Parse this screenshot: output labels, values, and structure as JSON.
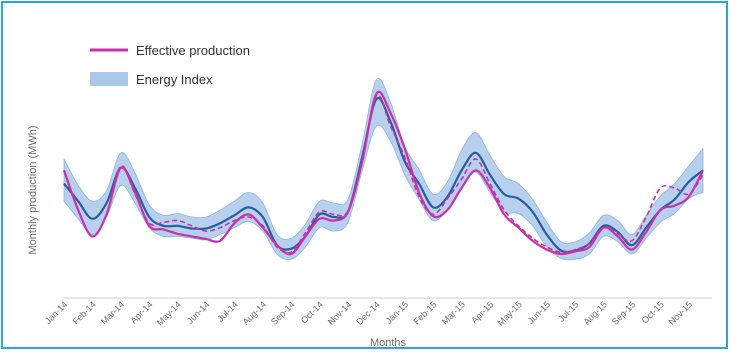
{
  "chart_data": {
    "type": "line",
    "xlabel": "Months",
    "ylabel": "Monthly production (MWh)",
    "categories": [
      "Jan-14",
      "Feb-14",
      "Mar-14",
      "Apr-14",
      "May-14",
      "Jun-14",
      "Jul-14",
      "Aug-14",
      "Sep-14",
      "Oct-14",
      "Nov-14",
      "Dec-14",
      "Jan-15",
      "Feb-15",
      "Mar-15",
      "Apr-15",
      "May-15",
      "Jun-15",
      "Jul-15",
      "Aug-15",
      "Sep-15",
      "Oct-15",
      "Nov-15"
    ],
    "x": [
      0,
      0.5,
      1,
      1.5,
      2,
      2.5,
      3,
      3.5,
      4,
      4.5,
      5,
      5.5,
      6,
      6.5,
      7,
      7.5,
      8,
      8.5,
      9,
      9.5,
      10,
      10.5,
      11,
      11.5,
      12,
      12.5,
      13,
      13.5,
      14,
      14.5,
      15,
      15.5,
      16,
      16.5,
      17,
      17.5,
      18,
      18.5,
      19,
      19.5,
      20,
      20.5,
      21,
      21.5,
      22,
      22.5
    ],
    "series": [
      {
        "name": "Effective production",
        "style": "solid",
        "color": "#c832a8",
        "values": [
          145,
          100,
          70,
          95,
          148,
          120,
          82,
          78,
          73,
          70,
          67,
          65,
          85,
          95,
          80,
          60,
          50,
          70,
          90,
          88,
          98,
          155,
          232,
          210,
          170,
          120,
          93,
          100,
          125,
          145,
          125,
          95,
          80,
          65,
          55,
          50,
          53,
          58,
          80,
          70,
          55,
          75,
          100,
          105,
          115,
          145
        ]
      },
      {
        "name": "",
        "style": "dashed",
        "color": "#c832a8",
        "values": [
          145,
          100,
          70,
          95,
          150,
          118,
          85,
          86,
          88,
          82,
          76,
          80,
          88,
          92,
          82,
          58,
          52,
          74,
          98,
          95,
          99,
          155,
          230,
          195,
          160,
          115,
          95,
          113,
          135,
          158,
          130,
          100,
          82,
          68,
          58,
          52,
          55,
          62,
          80,
          73,
          65,
          92,
          125,
          125,
          118,
          140
        ]
      },
      {
        "name": "",
        "style": "solid",
        "color": "#2b5d9b",
        "values": [
          130,
          110,
          90,
          108,
          148,
          125,
          92,
          82,
          82,
          79,
          79,
          85,
          94,
          103,
          92,
          60,
          56,
          70,
          95,
          92,
          98,
          160,
          226,
          200,
          155,
          130,
          103,
          115,
          145,
          165,
          140,
          118,
          113,
          98,
          72,
          54,
          54,
          62,
          82,
          75,
          60,
          80,
          100,
          112,
          132,
          145
        ]
      }
    ],
    "band": {
      "name": "Energy Index",
      "color": "#a9c8ea",
      "lower": [
        110,
        90,
        72,
        92,
        128,
        108,
        80,
        70,
        70,
        68,
        66,
        72,
        80,
        87,
        76,
        50,
        44,
        58,
        80,
        76,
        86,
        145,
        195,
        178,
        140,
        112,
        88,
        100,
        126,
        143,
        120,
        98,
        96,
        82,
        58,
        45,
        44,
        50,
        70,
        64,
        50,
        68,
        86,
        96,
        113,
        120
      ],
      "upper": [
        158,
        128,
        110,
        122,
        165,
        142,
        106,
        94,
        96,
        92,
        92,
        100,
        110,
        120,
        108,
        72,
        68,
        84,
        110,
        108,
        112,
        175,
        248,
        222,
        172,
        146,
        118,
        132,
        168,
        188,
        162,
        138,
        130,
        112,
        86,
        64,
        64,
        74,
        94,
        88,
        72,
        94,
        116,
        130,
        150,
        170
      ]
    },
    "legend": {
      "position": "top-left",
      "entries": [
        "Effective production",
        "Energy Index"
      ]
    },
    "ylim": [
      0,
      260
    ],
    "y_ticks_shown": false,
    "grid": false
  }
}
